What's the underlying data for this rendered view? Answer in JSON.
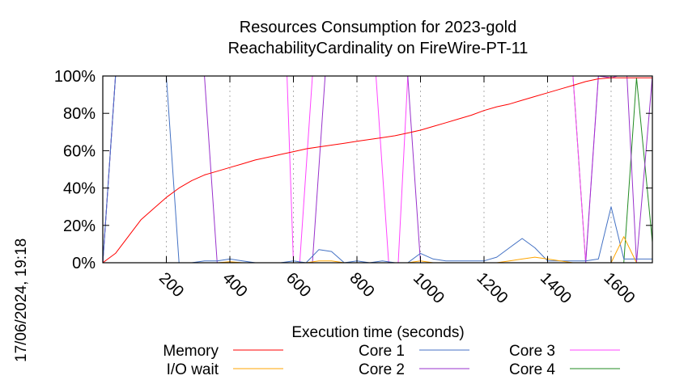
{
  "chart_data": {
    "type": "line",
    "title_line1": "Resources Consumption for 2023-gold",
    "title_line2": "ReachabilityCardinality on FireWire-PT-11",
    "xlabel": "Execution time (seconds)",
    "ylabel": "",
    "timestamp": "17/06/2024, 19:18",
    "xlim": [
      0,
      1730
    ],
    "ylim": [
      0,
      100
    ],
    "xticks": [
      200,
      400,
      600,
      800,
      1000,
      1200,
      1400,
      1600
    ],
    "yticks": [
      0,
      20,
      40,
      60,
      80,
      100
    ],
    "ytick_labels": [
      "0%",
      "20%",
      "40%",
      "60%",
      "80%",
      "100%"
    ],
    "grid": "vertical-dashed",
    "legend_position": "bottom",
    "series": [
      {
        "name": "Memory",
        "color": "#ff0000",
        "x": [
          0,
          40,
          80,
          120,
          160,
          200,
          240,
          280,
          320,
          360,
          400,
          440,
          480,
          520,
          560,
          600,
          640,
          680,
          720,
          760,
          800,
          840,
          880,
          920,
          960,
          1000,
          1040,
          1080,
          1120,
          1160,
          1200,
          1240,
          1280,
          1320,
          1360,
          1400,
          1440,
          1480,
          1520,
          1560,
          1600,
          1640,
          1680,
          1730
        ],
        "values": [
          0,
          5,
          14,
          23,
          29,
          35,
          40,
          44,
          47,
          49,
          51,
          53,
          55,
          56.5,
          58,
          59.5,
          61,
          62,
          63,
          64,
          65,
          66,
          67,
          68,
          69.5,
          71,
          73,
          75,
          77,
          79,
          81.5,
          83.5,
          85,
          87,
          89,
          91,
          93,
          95,
          97,
          98.5,
          99,
          99,
          99,
          99
        ]
      },
      {
        "name": "I/O wait",
        "color": "#ffa500",
        "x": [
          0,
          200,
          240,
          280,
          320,
          360,
          400,
          440,
          480,
          520,
          560,
          600,
          640,
          680,
          720,
          760,
          800,
          840,
          880,
          920,
          960,
          1000,
          1040,
          1080,
          1120,
          1160,
          1200,
          1240,
          1280,
          1320,
          1360,
          1400,
          1440,
          1480,
          1520,
          1560,
          1600,
          1640,
          1680,
          1730
        ],
        "values": [
          0,
          0,
          0,
          0,
          0,
          0,
          0.5,
          0,
          0,
          0,
          0,
          0,
          0,
          1,
          1,
          0,
          0,
          0,
          0,
          0,
          0,
          1,
          0,
          0,
          0,
          0,
          0,
          0,
          1,
          2,
          3,
          2,
          1,
          0,
          0,
          0,
          0,
          14,
          0,
          0
        ]
      },
      {
        "name": "Core 1",
        "color": "#4472c4",
        "x": [
          0,
          40,
          200,
          240,
          280,
          320,
          360,
          400,
          440,
          480,
          520,
          560,
          600,
          640,
          680,
          720,
          760,
          800,
          840,
          880,
          920,
          960,
          1000,
          1040,
          1080,
          1120,
          1160,
          1200,
          1240,
          1280,
          1320,
          1360,
          1400,
          1440,
          1480,
          1520,
          1560,
          1600,
          1640,
          1680,
          1730
        ],
        "values": [
          0,
          100,
          100,
          0,
          0,
          1,
          1,
          2,
          1,
          0,
          0,
          0,
          1,
          0,
          7,
          6,
          0,
          1,
          0,
          1,
          0,
          0,
          5,
          2,
          1,
          1,
          1,
          1,
          3,
          8,
          13,
          8,
          1,
          1,
          1,
          1,
          2,
          30,
          2,
          2,
          2
        ]
      },
      {
        "name": "Core 2",
        "color": "#9932cc",
        "x": [
          0,
          40,
          320,
          360,
          400,
          440,
          480,
          520,
          560,
          600,
          640,
          660,
          700,
          740,
          780,
          820,
          860,
          900,
          920,
          960,
          1000,
          1040,
          1080,
          1120,
          1160,
          1200,
          1240,
          1280,
          1320,
          1360,
          1400,
          1440,
          1480,
          1520,
          1560,
          1600,
          1620,
          1650,
          1680,
          1730
        ],
        "values": [
          0,
          100,
          100,
          0,
          0,
          0,
          0,
          0,
          0,
          0,
          0,
          0,
          100,
          100,
          100,
          100,
          100,
          100,
          100,
          100,
          0,
          0,
          0,
          0,
          0,
          0,
          0,
          0,
          0,
          0,
          0,
          0,
          0,
          0,
          100,
          99,
          100,
          100,
          0,
          100
        ]
      },
      {
        "name": "Core 3",
        "color": "#ff44ff",
        "x": [
          0,
          40,
          580,
          600,
          620,
          660,
          700,
          740,
          780,
          820,
          860,
          900,
          930,
          960,
          1000,
          1040,
          1080,
          1120,
          1160,
          1200,
          1240,
          1280,
          1320,
          1360,
          1400,
          1440,
          1480,
          1520,
          1560,
          1600,
          1640,
          1680,
          1730
        ],
        "values": [
          0,
          100,
          100,
          0,
          0,
          100,
          100,
          100,
          100,
          100,
          100,
          0,
          0,
          100,
          100,
          100,
          100,
          100,
          100,
          100,
          100,
          100,
          100,
          100,
          100,
          100,
          100,
          0,
          100,
          100,
          100,
          100,
          100
        ]
      },
      {
        "name": "Core 4",
        "color": "#228b22",
        "x": [
          0,
          40,
          1480,
          1520,
          1560,
          1600,
          1640,
          1680,
          1730
        ],
        "values": [
          0,
          100,
          100,
          0,
          0,
          0,
          0,
          99,
          11
        ]
      }
    ]
  }
}
